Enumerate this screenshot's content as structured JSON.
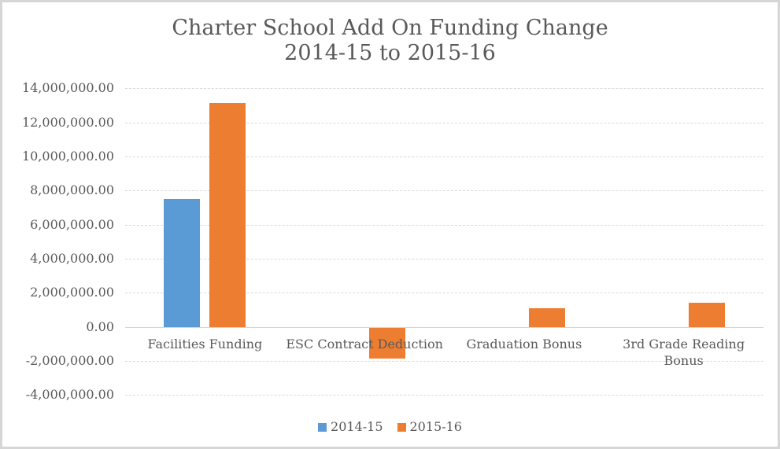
{
  "chart_data": {
    "type": "bar",
    "title": "Charter School Add On Funding Change",
    "subtitle": "2014-15 to 2015-16",
    "categories": [
      "Facilities Funding",
      "ESC Contract Deduction",
      "Graduation Bonus",
      "3rd Grade Reading Bonus"
    ],
    "category_label_lines": [
      [
        "Facilities Funding"
      ],
      [
        "ESC Contract Deduction"
      ],
      [
        "Graduation Bonus"
      ],
      [
        "3rd Grade Reading",
        "Bonus"
      ]
    ],
    "series": [
      {
        "name": "2014-15",
        "color": "#5B9BD5",
        "values": [
          7500000,
          0,
          0,
          0
        ]
      },
      {
        "name": "2015-16",
        "color": "#ED7D31",
        "values": [
          13150000,
          -1800000,
          1100000,
          1400000
        ]
      }
    ],
    "y_axis": {
      "min": -4000000,
      "max": 14000000,
      "step": 2000000,
      "tick_labels": [
        "14,000,000.00",
        "12,000,000.00",
        "10,000,000.00",
        "8,000,000.00",
        "6,000,000.00",
        "4,000,000.00",
        "2,000,000.00",
        "0.00",
        "-2,000,000.00",
        "-4,000,000.00"
      ]
    },
    "grid": "dashed-horizontal",
    "legend_position": "bottom",
    "colors": {
      "text": "#595959",
      "gridline": "#D9D9D9",
      "zero_axis_line": "#D4D4D4",
      "chart_border": "#D6D6D6",
      "background": "#FFFFFF"
    }
  }
}
